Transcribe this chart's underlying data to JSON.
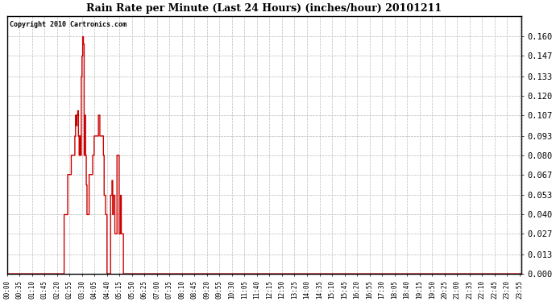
{
  "title": "Rain Rate per Minute (Last 24 Hours) (inches/hour) 20101211",
  "copyright": "Copyright 2010 Cartronics.com",
  "background_color": "#ffffff",
  "plot_bg_color": "#ffffff",
  "line_color": "#cc0000",
  "grid_color": "#bbbbbb",
  "ylim": [
    0.0,
    0.174
  ],
  "yticks": [
    0.0,
    0.013,
    0.027,
    0.04,
    0.053,
    0.067,
    0.08,
    0.093,
    0.107,
    0.12,
    0.133,
    0.147,
    0.16
  ],
  "xtick_step_minutes": 35,
  "total_minutes": 1440,
  "rain_values": [
    0.0,
    0.0,
    0.0,
    0.0,
    0.0,
    0.0,
    0.0,
    0.0,
    0.0,
    0.0,
    0.0,
    0.0,
    0.0,
    0.0,
    0.0,
    0.0,
    0.0,
    0.0,
    0.0,
    0.0,
    0.0,
    0.0,
    0.0,
    0.0,
    0.0,
    0.0,
    0.0,
    0.0,
    0.0,
    0.0,
    0.0,
    0.0,
    0.0,
    0.0,
    0.0,
    0.0,
    0.0,
    0.0,
    0.0,
    0.0,
    0.0,
    0.0,
    0.0,
    0.0,
    0.0,
    0.0,
    0.0,
    0.0,
    0.0,
    0.0,
    0.0,
    0.0,
    0.0,
    0.0,
    0.0,
    0.0,
    0.0,
    0.0,
    0.0,
    0.0,
    0.0,
    0.0,
    0.0,
    0.0,
    0.0,
    0.0,
    0.0,
    0.0,
    0.0,
    0.0,
    0.0,
    0.0,
    0.0,
    0.0,
    0.0,
    0.0,
    0.0,
    0.0,
    0.0,
    0.0,
    0.0,
    0.0,
    0.0,
    0.0,
    0.0,
    0.0,
    0.0,
    0.0,
    0.0,
    0.0,
    0.0,
    0.0,
    0.0,
    0.0,
    0.0,
    0.0,
    0.0,
    0.0,
    0.0,
    0.0,
    0.0,
    0.0,
    0.0,
    0.0,
    0.0,
    0.0,
    0.0,
    0.0,
    0.0,
    0.0,
    0.0,
    0.0,
    0.0,
    0.0,
    0.0,
    0.0,
    0.0,
    0.0,
    0.0,
    0.0,
    0.0,
    0.0,
    0.0,
    0.0,
    0.0,
    0.0,
    0.0,
    0.0,
    0.0,
    0.0,
    0.0,
    0.0,
    0.0,
    0.0,
    0.0,
    0.0,
    0.0,
    0.0,
    0.0,
    0.0,
    0.0,
    0.0,
    0.0,
    0.0,
    0.0,
    0.0,
    0.0,
    0.0,
    0.0,
    0.0,
    0.0,
    0.0,
    0.0,
    0.0,
    0.0,
    0.0,
    0.0,
    0.0,
    0.0,
    0.0,
    0.04,
    0.04,
    0.04,
    0.04,
    0.04,
    0.04,
    0.04,
    0.04,
    0.04,
    0.04,
    0.067,
    0.067,
    0.067,
    0.067,
    0.067,
    0.067,
    0.067,
    0.067,
    0.067,
    0.067,
    0.08,
    0.08,
    0.08,
    0.08,
    0.08,
    0.08,
    0.08,
    0.08,
    0.08,
    0.08,
    0.093,
    0.093,
    0.107,
    0.107,
    0.1,
    0.1,
    0.107,
    0.107,
    0.11,
    0.11,
    0.093,
    0.093,
    0.08,
    0.08,
    0.093,
    0.093,
    0.08,
    0.08,
    0.133,
    0.133,
    0.147,
    0.147,
    0.16,
    0.16,
    0.155,
    0.155,
    0.08,
    0.08,
    0.107,
    0.107,
    0.08,
    0.08,
    0.06,
    0.06,
    0.04,
    0.04,
    0.04,
    0.04,
    0.04,
    0.04,
    0.067,
    0.067,
    0.067,
    0.067,
    0.067,
    0.067,
    0.067,
    0.067,
    0.067,
    0.067,
    0.08,
    0.08,
    0.08,
    0.08,
    0.093,
    0.093,
    0.093,
    0.093,
    0.093,
    0.093,
    0.093,
    0.093,
    0.093,
    0.093,
    0.093,
    0.093,
    0.107,
    0.107,
    0.107,
    0.107,
    0.093,
    0.093,
    0.093,
    0.093,
    0.093,
    0.093,
    0.093,
    0.093,
    0.093,
    0.093,
    0.08,
    0.08,
    0.053,
    0.053,
    0.053,
    0.053,
    0.04,
    0.04,
    0.04,
    0.04,
    0.0,
    0.0,
    0.0,
    0.0,
    0.0,
    0.0,
    0.0,
    0.0,
    0.0,
    0.0,
    0.053,
    0.053,
    0.053,
    0.053,
    0.063,
    0.063,
    0.04,
    0.04,
    0.053,
    0.053,
    0.053,
    0.053,
    0.027,
    0.027,
    0.027,
    0.027,
    0.027,
    0.027,
    0.08,
    0.08,
    0.08,
    0.08,
    0.08,
    0.08,
    0.027,
    0.027,
    0.027,
    0.027,
    0.053,
    0.053,
    0.027,
    0.027,
    0.027,
    0.027,
    0.027,
    0.027,
    0.0,
    0.0,
    0.0,
    0.0,
    0.0,
    0.0,
    0.0,
    0.0,
    0.0,
    0.0,
    0.0,
    0.0,
    0.0,
    0.0,
    0.0,
    0.0,
    0.0,
    0.0,
    0.0,
    0.0,
    0.0,
    0.0,
    0.0,
    0.0,
    0.0,
    0.0,
    0.0,
    0.0,
    0.0,
    0.0,
    0.0,
    0.0,
    0.0,
    0.0,
    0.0,
    0.0,
    0.0,
    0.0,
    0.0,
    0.0,
    0.0,
    0.0,
    0.0,
    0.0,
    0.0,
    0.0,
    0.0,
    0.0,
    0.0,
    0.0,
    0.0,
    0.0,
    0.0,
    0.0,
    0.0,
    0.0,
    0.0,
    0.0,
    0.0,
    0.0,
    0.0,
    0.0,
    0.0,
    0.0,
    0.0,
    0.0,
    0.0,
    0.0,
    0.0,
    0.0,
    0.0,
    0.0,
    0.0,
    0.0,
    0.0,
    0.0,
    0.0,
    0.0,
    0.0,
    0.0,
    0.0,
    0.0,
    0.0,
    0.0,
    0.0,
    0.0,
    0.0,
    0.0,
    0.0,
    0.0,
    0.0,
    0.0,
    0.0,
    0.0,
    0.0,
    0.0,
    0.0,
    0.0,
    0.0,
    0.0,
    0.0,
    0.0,
    0.0,
    0.0,
    0.0,
    0.0,
    0.0,
    0.0,
    0.0,
    0.0,
    0.0,
    0.0,
    0.0,
    0.0,
    0.0,
    0.0,
    0.0,
    0.0,
    0.0,
    0.0,
    0.0,
    0.0,
    0.0,
    0.0
  ]
}
